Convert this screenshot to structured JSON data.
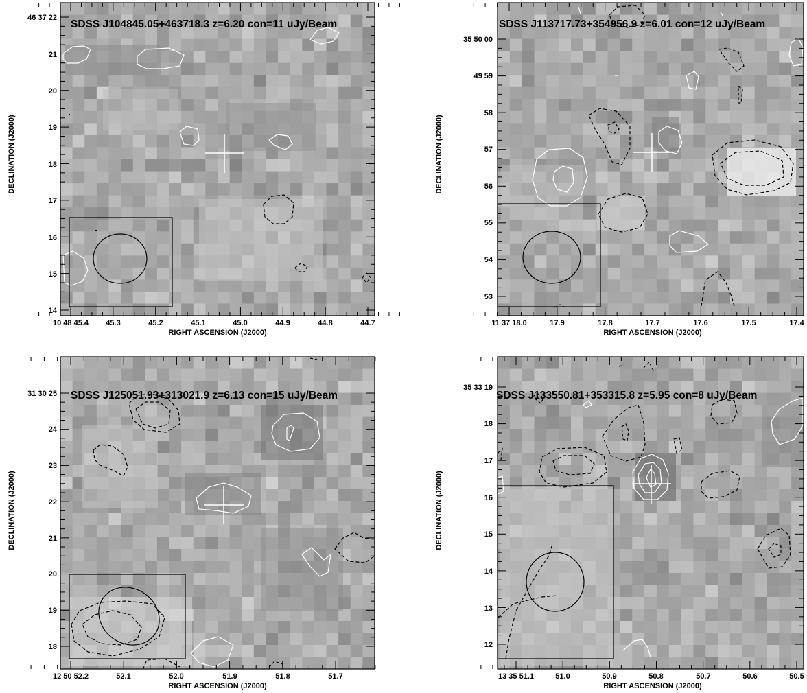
{
  "panels": [
    {
      "title": "SDSS J104845.05+463718.3 z=6.20 con=11 uJy/Beam",
      "xlabel": "RIGHT ASCENSION (J2000)",
      "ylabel": "DECLINATION (J2000)",
      "ra_ticks": [
        "10 48 45.4",
        "45.3",
        "45.2",
        "45.1",
        "45.0",
        "44.9",
        "44.8",
        "44.7"
      ],
      "dec_ticks": [
        "46 37 22",
        "21",
        "20",
        "19",
        "18",
        "17",
        "16",
        "15",
        "14"
      ]
    },
    {
      "title": "SDSS J113717.73+354956.9 z=6.01 con=12 uJy/Beam",
      "xlabel": "RIGHT ASCENSION (J2000)",
      "ylabel": "DECLINATION (J2000)",
      "ra_ticks": [
        "11 37 18.0",
        "17.9",
        "17.8",
        "17.7",
        "17.6",
        "17.5",
        "17.4"
      ],
      "dec_ticks": [
        "35 50 00",
        "49 59",
        "58",
        "57",
        "56",
        "55",
        "54",
        "53"
      ]
    },
    {
      "title": "SDSS J125051.93+313021.9 z=6.13 con=15 uJy/Beam",
      "xlabel": "RIGHT ASCENSION (J2000)",
      "ylabel": "DECLINATION (J2000)",
      "ra_ticks": [
        "12 50 52.2",
        "52.1",
        "52.0",
        "51.9",
        "51.8",
        "51.7"
      ],
      "dec_ticks": [
        "31 30 25",
        "24",
        "23",
        "22",
        "21",
        "20",
        "19",
        "18"
      ]
    },
    {
      "title": "SDSS J133550.81+353315.8 z=5.95 con=8 uJy/Beam",
      "xlabel": "RIGHT ASCENSION (J2000)",
      "ylabel": "DECLINATION (J2000)",
      "ra_ticks": [
        "13 35 51.1",
        "51.0",
        "50.9",
        "50.8",
        "50.7",
        "50.6",
        "50.5"
      ],
      "dec_ticks": [
        "35 33 19",
        "18",
        "17",
        "16",
        "15",
        "14",
        "13",
        "12"
      ]
    }
  ]
}
